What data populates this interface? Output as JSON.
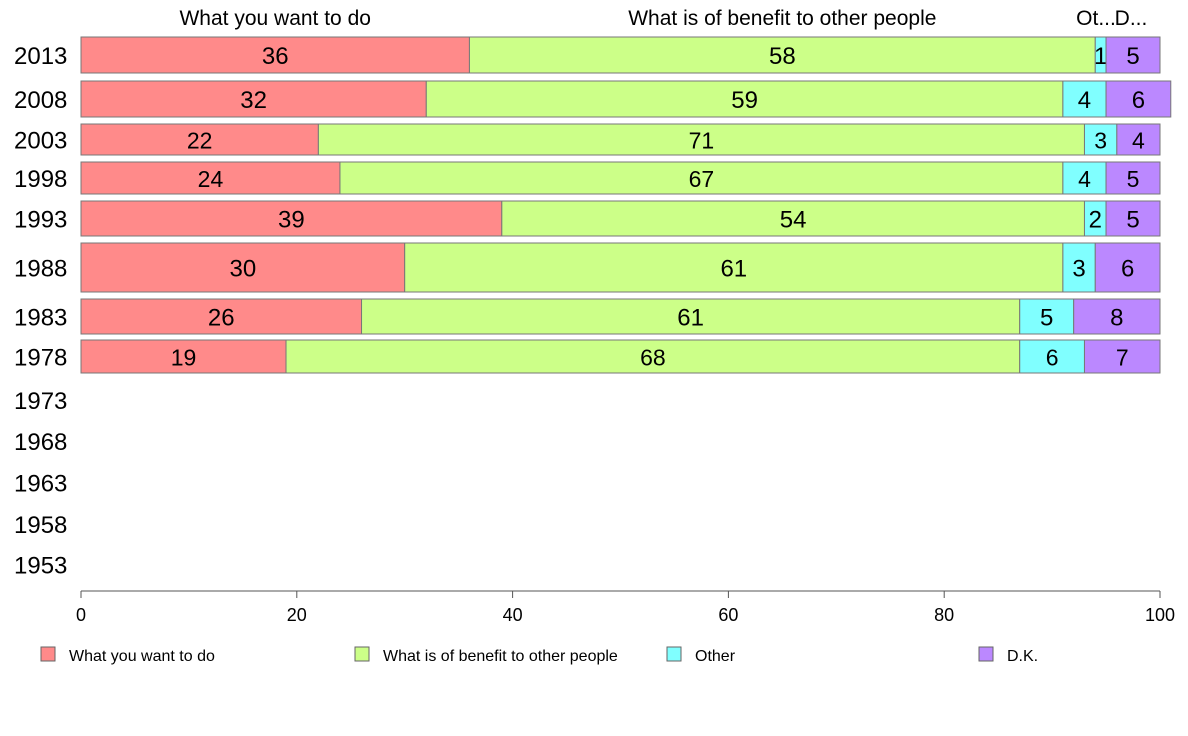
{
  "chart_data": {
    "type": "bar",
    "orientation": "horizontal",
    "stacked": true,
    "categories": [
      "2013",
      "2008",
      "2003",
      "1998",
      "1993",
      "1988",
      "1983",
      "1978",
      "1973",
      "1968",
      "1963",
      "1958",
      "1953"
    ],
    "series": [
      {
        "name": "What you want to do",
        "short": "What you want to do",
        "color": "#ff8a8a",
        "values": [
          36,
          32,
          22,
          24,
          39,
          30,
          26,
          19,
          null,
          null,
          null,
          null,
          null
        ]
      },
      {
        "name": "What is of benefit to other people",
        "short": "What is of benefit to other people",
        "color": "#ccff88",
        "values": [
          58,
          59,
          71,
          67,
          54,
          61,
          61,
          68,
          null,
          null,
          null,
          null,
          null
        ]
      },
      {
        "name": "Other",
        "short": "Ot...",
        "color": "#80ffff",
        "values": [
          1,
          4,
          3,
          4,
          2,
          3,
          5,
          6,
          null,
          null,
          null,
          null,
          null
        ]
      },
      {
        "name": "D.K.",
        "short": "D...",
        "color": "#bb88ff",
        "values": [
          5,
          6,
          4,
          5,
          5,
          6,
          8,
          7,
          null,
          null,
          null,
          null,
          null
        ]
      }
    ],
    "xlim": [
      0,
      100
    ],
    "xticks": [
      0,
      20,
      40,
      60,
      80,
      100
    ],
    "grid": false,
    "legend_position": "bottom"
  }
}
